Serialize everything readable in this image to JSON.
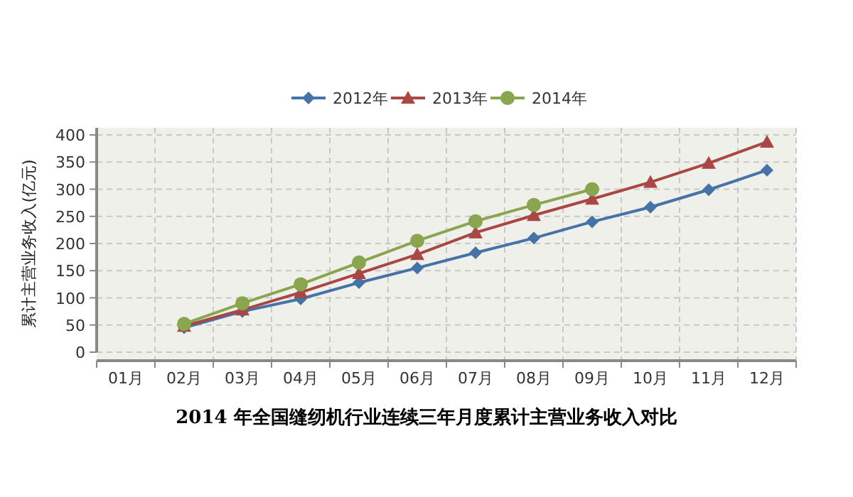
{
  "chart_data": {
    "type": "line",
    "title": "2014 年全国缝纫机行业连续三年月度累计主营业务收入对比",
    "ylabel": "累计主营业务收入(亿元)",
    "categories": [
      "01月",
      "02月",
      "03月",
      "04月",
      "05月",
      "06月",
      "07月",
      "08月",
      "09月",
      "10月",
      "11月",
      "12月"
    ],
    "series": [
      {
        "name": "2012年",
        "color": "#4572a7",
        "marker": "diamond",
        "values": [
          null,
          45,
          75,
          98,
          128,
          155,
          183,
          210,
          240,
          267,
          299,
          335
        ]
      },
      {
        "name": "2013年",
        "color": "#aa4643",
        "marker": "triangle",
        "values": [
          null,
          48,
          78,
          110,
          145,
          180,
          220,
          252,
          282,
          313,
          348,
          387
        ]
      },
      {
        "name": "2014年",
        "color": "#89a54e",
        "marker": "circle",
        "values": [
          null,
          52,
          90,
          125,
          165,
          205,
          241,
          271,
          300,
          null,
          null,
          null
        ]
      }
    ],
    "ylim": [
      0,
      400
    ],
    "yticks": [
      0,
      50,
      100,
      150,
      200,
      250,
      300,
      350,
      400
    ],
    "grid": true,
    "legend": "top"
  }
}
